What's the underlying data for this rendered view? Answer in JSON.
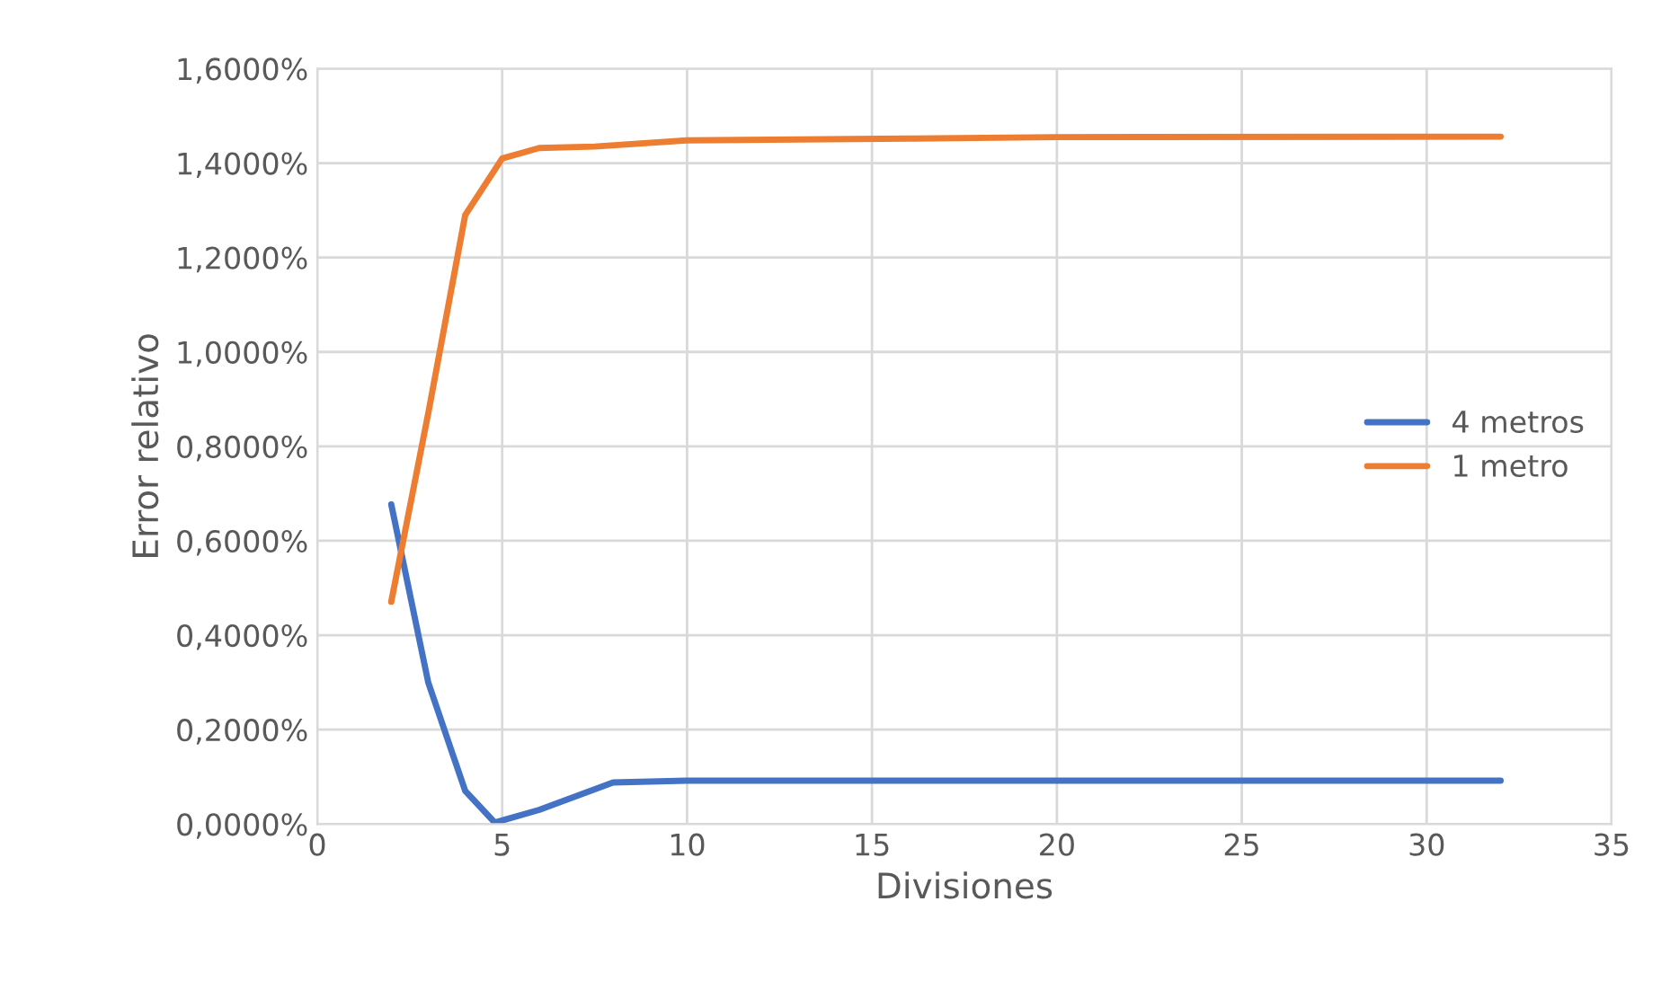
{
  "chart_data": {
    "type": "line",
    "xlabel": "Divisiones",
    "ylabel": "Error relativo",
    "series": [
      {
        "name": "4 metros",
        "color": "#4472c4",
        "x": [
          2,
          3,
          4,
          4.8,
          6,
          8,
          10,
          16,
          20,
          32
        ],
        "values": [
          0.677,
          0.3,
          0.07,
          0.003,
          0.03,
          0.088,
          0.092,
          0.092,
          0.092,
          0.092
        ]
      },
      {
        "name": "1 metro",
        "color": "#ed7d31",
        "x": [
          2,
          3,
          4,
          5,
          6,
          7.5,
          10,
          16,
          20,
          32
        ],
        "values": [
          0.471,
          0.87,
          1.29,
          1.41,
          1.432,
          1.435,
          1.448,
          1.452,
          1.455,
          1.456
        ]
      }
    ],
    "xlim": [
      0,
      35
    ],
    "xticks": [
      0,
      5,
      10,
      15,
      20,
      25,
      30,
      35
    ],
    "ylim": [
      0,
      1.6
    ],
    "yticks": [
      {
        "value": 0,
        "label": "0,0000%"
      },
      {
        "value": 0.2,
        "label": "0,2000%"
      },
      {
        "value": 0.4,
        "label": "0,4000%"
      },
      {
        "value": 0.6,
        "label": "0,6000%"
      },
      {
        "value": 0.8,
        "label": "0,8000%"
      },
      {
        "value": 1.0,
        "label": "1,0000%"
      },
      {
        "value": 1.2,
        "label": "1,2000%"
      },
      {
        "value": 1.4,
        "label": "1,4000%"
      },
      {
        "value": 1.6,
        "label": "1,6000%"
      }
    ],
    "grid": true,
    "legend": "center right",
    "marker": "none",
    "line_style": "solid"
  }
}
